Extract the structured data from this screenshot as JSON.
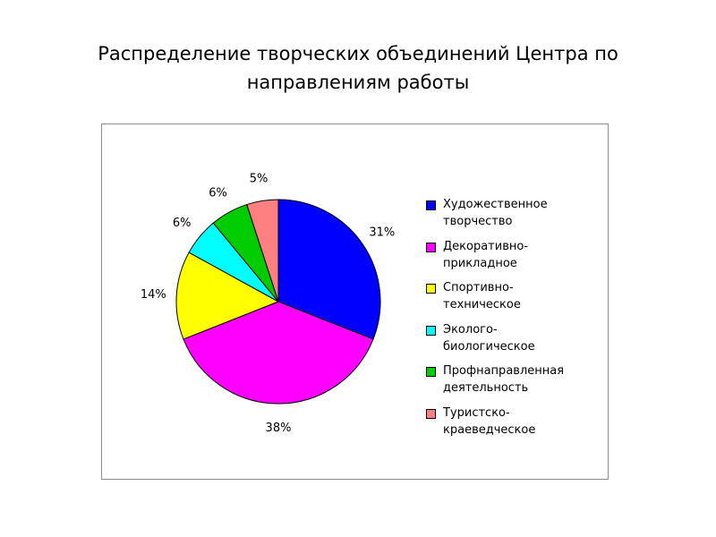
{
  "slide": {
    "title": "Распределение творческих объединений Центра по направлениям работы"
  },
  "chart_data": {
    "type": "pie",
    "title": "Распределение творческих объединений Центра по направлениям работы",
    "legend_position": "right",
    "slices": [
      {
        "label": "Художественное творчество",
        "legend_text": "Художественное\nтворчество",
        "value": 31,
        "value_label": "31%",
        "color": "#0000ff"
      },
      {
        "label": "Декоративно-прикладное",
        "legend_text": "Декоративно-\nприкладное",
        "value": 38,
        "value_label": "38%",
        "color": "#ff00ff"
      },
      {
        "label": "Спортивно-техническое",
        "legend_text": "Спортивно-\nтехническое",
        "value": 14,
        "value_label": "14%",
        "color": "#ffff00"
      },
      {
        "label": "Эколого-биологическое",
        "legend_text": "Эколого-\nбиологическое",
        "value": 6,
        "value_label": "6%",
        "color": "#00ffff"
      },
      {
        "label": "Профнаправленная деятельность",
        "legend_text": "Профнаправленная\nдеятельность",
        "value": 6,
        "value_label": "6%",
        "color": "#00cc00"
      },
      {
        "label": "Туристско-краеведческое",
        "legend_text": "Туристско-\nкраеведческое",
        "value": 5,
        "value_label": "5%",
        "color": "#ff8080"
      }
    ]
  }
}
